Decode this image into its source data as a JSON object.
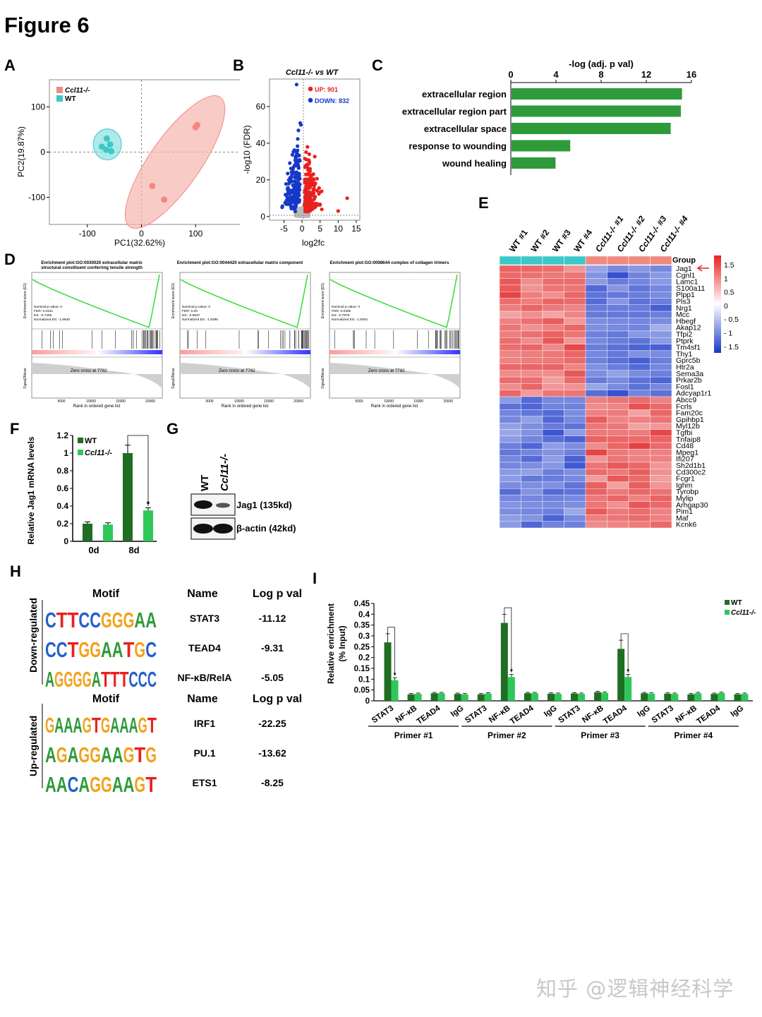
{
  "figure_title": "Figure 6",
  "panel_labels": [
    "A",
    "B",
    "C",
    "D",
    "E",
    "F",
    "G",
    "H",
    "I"
  ],
  "colors": {
    "wt_teal": "#3cc8c8",
    "ko_salmon": "#f08a80",
    "up_red": "#e8211f",
    "down_blue": "#1638c8",
    "bar_green": "#2e9a3a",
    "dark_green": "#1f6e22",
    "light_green": "#2ec85a"
  },
  "chart_data": [
    {
      "panel": "A",
      "type": "scatter",
      "xlabel": "PC1(32.62%)",
      "ylabel": "PC2(19.87%)",
      "xticks": [
        "-100",
        "0",
        "100"
      ],
      "yticks": [
        "100",
        "0",
        "-100"
      ],
      "xlim": [
        -170,
        200
      ],
      "ylim": [
        -160,
        160
      ],
      "legend": [
        "Ccl11-/-",
        "WT"
      ],
      "series": [
        {
          "name": "Ccl11-/-",
          "color": "#f08a80",
          "points": [
            [
              100,
              55
            ],
            [
              103,
              60
            ],
            [
              20,
              -75
            ],
            [
              42,
              -105
            ]
          ]
        },
        {
          "name": "WT",
          "color": "#3cc8c8",
          "points": [
            [
              -64,
              30
            ],
            [
              -58,
              17
            ],
            [
              -65,
              5
            ],
            [
              -56,
              2
            ],
            [
              -73,
              12
            ]
          ]
        }
      ]
    },
    {
      "panel": "B",
      "type": "scatter",
      "title": "Ccl11-/- vs WT",
      "xlabel": "log2fc",
      "ylabel": "-log10 (FDR)",
      "xticks": [
        "-5",
        "0",
        "5",
        "10",
        "15"
      ],
      "yticks": [
        "0",
        "20",
        "40",
        "60"
      ],
      "xlim": [
        -9,
        16
      ],
      "ylim": [
        -2,
        75
      ],
      "legend": [
        "UP: 901",
        "DOWN: 832"
      ]
    },
    {
      "panel": "C",
      "type": "bar",
      "xlabel": "-log (adj. p val)",
      "xticks": [
        "0",
        "4",
        "8",
        "12",
        "16"
      ],
      "xlim": [
        0,
        16
      ],
      "categories": [
        "extracellular region",
        "extracellular region part",
        "extracellular space",
        "response to wounding",
        "wound healing"
      ],
      "values": [
        15.1,
        15.0,
        14.1,
        5.2,
        3.9
      ]
    },
    {
      "panel": "D",
      "type": "line",
      "subplots": [
        {
          "title": "Enrichment plot:GO:0030020 extracellular matrix structural constituent conferring tensile strength",
          "stats": [
            "Nominal p-value: 0",
            "FDR: 0.0241",
            "ES: -0.7256",
            "Normalized ES: -1.8940"
          ]
        },
        {
          "title": "Enrichment plot:GO:0044420 extracellular matrix component",
          "stats": [
            "Nominal p-value: 0",
            "FDR: 0.00",
            "ES: -0.6537",
            "Normalized ES: -1.9396"
          ]
        },
        {
          "title": "Enrichment plot:GO:0098644 complex of collagen trimers",
          "stats": [
            "Nominal p-value: 0",
            "FDR: 0.0305",
            "ES: -0.7979",
            "Normalized ES: -1.8304"
          ]
        }
      ],
      "zero_cross": "Zero cross at 7782",
      "xlabel": "Rank in ordered gene list",
      "ylabel_top": "Enrichment score (ES)",
      "ylabel_bottom": "Signal2Noise",
      "xticks": [
        "5000",
        "10000",
        "15000",
        "20000"
      ]
    },
    {
      "panel": "E",
      "type": "heatmap",
      "columns": [
        "WT #1",
        "WT #2",
        "WT #3",
        "WT #4",
        "Ccl11-/- #1",
        "Ccl11-/- #2",
        "Ccl11-/- #3",
        "Ccl11-/- #4"
      ],
      "group_label": "Group",
      "marker": "Jag1",
      "scale_ticks": [
        "1.5",
        "1",
        "0.5",
        "0",
        "- 0.5",
        "- 1",
        "- 1.5"
      ],
      "rows_down": [
        "Jag1",
        "Cgnl1",
        "Lamc1",
        "S100a11",
        "Plpp1",
        "Pls3",
        "Nrg1",
        "Mcc",
        "Hbegf",
        "Akap12",
        "Tfpi2",
        "Ptprk",
        "Tm4sf1",
        "Thy1",
        "Gprc5b",
        "Htr2a",
        "Sema3a",
        "Prkar2b",
        "Fosl1",
        "Adcyap1r1"
      ],
      "rows_up": [
        "Abcc9",
        "Fcrls",
        "Fam20c",
        "Gpihbp1",
        "Myl12b",
        "Tgfbi",
        "Tnfaip8",
        "Cd48",
        "Mpeg1",
        "Ifi207",
        "Sh2d1b1",
        "Cd300c2",
        "Fcgr1",
        "Ighm",
        "Tyrobp",
        "Mylip",
        "Arhgap30",
        "Pim1",
        "Maf",
        "Kcnk6"
      ]
    },
    {
      "panel": "F",
      "type": "bar",
      "ylabel": "Relative Jag1 mRNA levels",
      "categories": [
        "0d",
        "8d"
      ],
      "yticks": [
        "0",
        "0.2",
        "0.4",
        "0.6",
        "0.8",
        "1",
        "1.2"
      ],
      "ylim": [
        0,
        1.2
      ],
      "series": [
        {
          "name": "WT",
          "values": [
            0.2,
            1.0
          ]
        },
        {
          "name": "Ccl11-/-",
          "values": [
            0.19,
            0.35
          ]
        }
      ],
      "annotation": "*"
    },
    {
      "panel": "I",
      "type": "bar",
      "ylabel": "Relative enrichment (% Input)",
      "yticks": [
        "0",
        "0.05",
        "0.1",
        "0.15",
        "0.2",
        "0.25",
        "0.3",
        "0.35",
        "0.4",
        "0.45"
      ],
      "ylim": [
        0,
        0.45
      ],
      "categories": [
        "STAT3",
        "NF-κB",
        "TEAD4",
        "IgG",
        "STAT3",
        "NF-κB",
        "TEAD4",
        "IgG",
        "STAT3",
        "NF-κB",
        "TEAD4",
        "IgG",
        "STAT3",
        "NF-κB",
        "TEAD4",
        "IgG"
      ],
      "groups": [
        "Primer #1",
        "Primer #2",
        "Primer #3",
        "Primer #4"
      ],
      "series": [
        {
          "name": "WT",
          "values": [
            0.27,
            0.03,
            0.035,
            0.032,
            0.03,
            0.36,
            0.035,
            0.033,
            0.034,
            0.04,
            0.24,
            0.035,
            0.033,
            0.03,
            0.032,
            0.03
          ]
        },
        {
          "name": "Ccl11-/-",
          "values": [
            0.095,
            0.032,
            0.035,
            0.03,
            0.034,
            0.11,
            0.035,
            0.032,
            0.032,
            0.037,
            0.11,
            0.033,
            0.032,
            0.035,
            0.036,
            0.032
          ]
        }
      ],
      "annotation": "*"
    }
  ],
  "panel_g": {
    "lanes": [
      "WT",
      "Ccl11-/-"
    ],
    "bands": [
      "Jag1 (135kd)",
      "β-actin (42kd)"
    ]
  },
  "panel_h": {
    "headers": [
      "Motif",
      "Name",
      "Log p val"
    ],
    "down_label": "Down-regulated",
    "up_label": "Up-regulated",
    "down": [
      {
        "motif": "CTTCCGGGAA",
        "name": "STAT3",
        "logp": "-11.12"
      },
      {
        "motif": "CCTGGAATGC",
        "name": "TEAD4",
        "logp": "-9.31"
      },
      {
        "motif": "AGGGGATTTCCC",
        "name": "NF-κB/RelA",
        "logp": "-5.05"
      }
    ],
    "up": [
      {
        "motif": "GAAAGTGAAAGT",
        "name": "IRF1",
        "logp": "-22.25"
      },
      {
        "motif": "AGAGGAAGTG",
        "name": "PU.1",
        "logp": "-13.62"
      },
      {
        "motif": "AACAGGAAGT",
        "name": "ETS1",
        "logp": "-8.25"
      }
    ]
  },
  "watermark": "知乎 @逻辑神经科学"
}
